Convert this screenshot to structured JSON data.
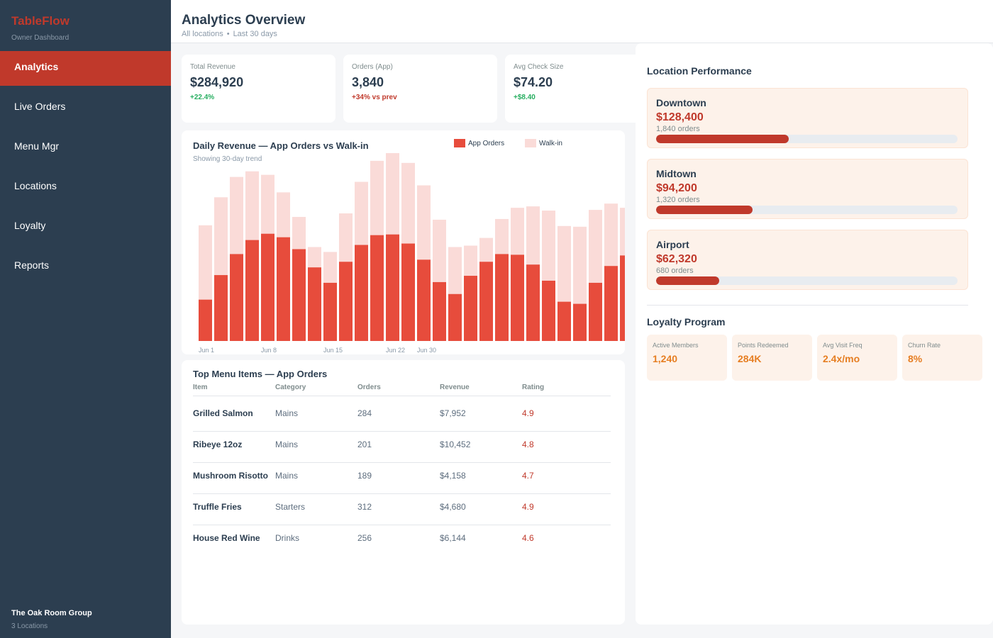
{
  "brand": {
    "name": "TableFlow",
    "subtitle": "Owner Dashboard"
  },
  "nav": {
    "items": [
      {
        "label": "Analytics",
        "active": true
      },
      {
        "label": "Live Orders"
      },
      {
        "label": "Menu Mgr"
      },
      {
        "label": "Locations"
      },
      {
        "label": "Loyalty"
      },
      {
        "label": "Reports"
      }
    ]
  },
  "org": {
    "name": "The Oak Room Group",
    "locations": "3 Locations"
  },
  "header": {
    "title": "Analytics Overview",
    "scope": "All locations",
    "separator": "•",
    "range": "Last 30 days"
  },
  "kpis": [
    {
      "label": "Total Revenue",
      "value": "$284,920",
      "delta": "+22.4%"
    },
    {
      "label": "Orders (App)",
      "value": "3,840",
      "delta": "+34% vs prev"
    },
    {
      "label": "Avg Check Size",
      "value": "$74.20",
      "delta": "+$8.40"
    }
  ],
  "colors": {
    "brand": "#c0392b",
    "sidebar": "#2c3e50",
    "app_orders": "#e74c3c",
    "walk_in": "#fadbd8",
    "positive": "#27ae60",
    "accent_orange": "#e67e22"
  },
  "chart_data": {
    "type": "bar",
    "stacked": true,
    "title": "Daily Revenue — App Orders vs Walk-in",
    "subtitle": "Showing 30-day trend",
    "x_tick_labels": [
      "Jun 1",
      "Jun 8",
      "Jun 15",
      "Jun 22",
      "Jun 30"
    ],
    "x_tick_indices": [
      0,
      4,
      8,
      12,
      14
    ],
    "legend_position": "top-right",
    "grid": false,
    "ylim": [
      0,
      270
    ],
    "series": [
      {
        "name": "App Orders",
        "values": [
          59,
          94,
          124,
          144,
          153,
          148,
          131,
          105,
          83,
          113,
          137,
          151,
          152,
          139,
          116,
          84,
          67,
          93,
          113,
          124,
          123,
          109,
          86,
          56,
          53,
          83,
          107,
          122,
          125,
          136
        ]
      },
      {
        "name": "Walk-in",
        "values": [
          106,
          111,
          110,
          98,
          84,
          64,
          46,
          29,
          44,
          69,
          90,
          106,
          116,
          115,
          106,
          89,
          67,
          43,
          34,
          50,
          67,
          83,
          100,
          108,
          110,
          104,
          89,
          68,
          44,
          50
        ]
      }
    ]
  },
  "menu_table": {
    "title": "Top Menu Items — App Orders",
    "columns": [
      "Item",
      "Category",
      "Orders",
      "Revenue",
      "Rating"
    ],
    "rows": [
      [
        "Grilled Salmon",
        "Mains",
        "284",
        "$7,952",
        "4.9"
      ],
      [
        "Ribeye 12oz",
        "Mains",
        "201",
        "$10,452",
        "4.8"
      ],
      [
        "Mushroom Risotto",
        "Mains",
        "189",
        "$4,158",
        "4.7"
      ],
      [
        "Truffle Fries",
        "Starters",
        "312",
        "$4,680",
        "4.9"
      ],
      [
        "House Red Wine",
        "Drinks",
        "256",
        "$6,144",
        "4.6"
      ]
    ]
  },
  "location_performance": {
    "title": "Location Performance",
    "items": [
      {
        "name": "Downtown",
        "revenue": "$128,400",
        "orders": "1,840 orders",
        "share": 0.44
      },
      {
        "name": "Midtown",
        "revenue": "$94,200",
        "orders": "1,320 orders",
        "share": 0.32
      },
      {
        "name": "Airport",
        "revenue": "$62,320",
        "orders": "680 orders",
        "share": 0.21
      }
    ]
  },
  "loyalty": {
    "title": "Loyalty Program",
    "stats": [
      {
        "label": "Active Members",
        "value": "1,240"
      },
      {
        "label": "Points Redeemed",
        "value": "284K"
      },
      {
        "label": "Avg Visit Freq",
        "value": "2.4x/mo"
      },
      {
        "label": "Churn Rate",
        "value": "8%"
      }
    ]
  }
}
